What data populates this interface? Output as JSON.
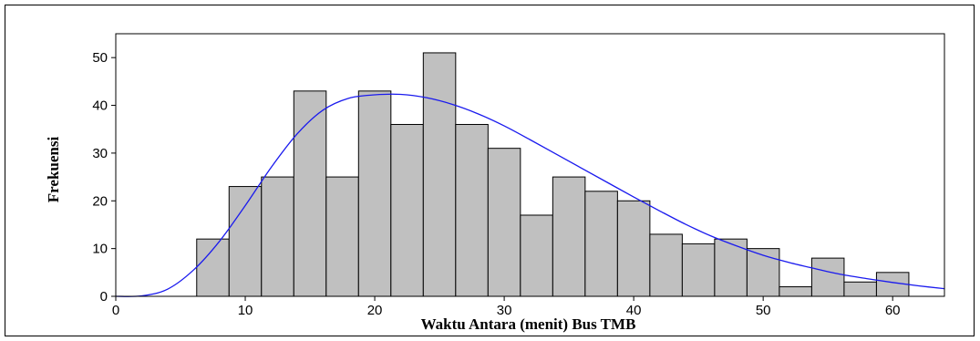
{
  "chart_data": {
    "type": "bar",
    "title": "",
    "xlabel": "Waktu Antara (menit) Bus TMB",
    "ylabel": "Frekuensi",
    "xlim": [
      0,
      64
    ],
    "ylim": [
      0,
      55
    ],
    "x_ticks": [
      0,
      10,
      20,
      30,
      40,
      50,
      60
    ],
    "y_ticks": [
      0,
      10,
      20,
      30,
      40,
      50
    ],
    "bin_width": 2.5,
    "bins": [
      {
        "x0": 6.25,
        "x1": 8.75,
        "count": 12
      },
      {
        "x0": 8.75,
        "x1": 11.25,
        "count": 23
      },
      {
        "x0": 11.25,
        "x1": 13.75,
        "count": 25
      },
      {
        "x0": 13.75,
        "x1": 16.25,
        "count": 43
      },
      {
        "x0": 16.25,
        "x1": 18.75,
        "count": 25
      },
      {
        "x0": 18.75,
        "x1": 21.25,
        "count": 43
      },
      {
        "x0": 21.25,
        "x1": 23.75,
        "count": 36
      },
      {
        "x0": 23.75,
        "x1": 26.25,
        "count": 51
      },
      {
        "x0": 26.25,
        "x1": 28.75,
        "count": 36
      },
      {
        "x0": 28.75,
        "x1": 31.25,
        "count": 31
      },
      {
        "x0": 31.25,
        "x1": 33.75,
        "count": 17
      },
      {
        "x0": 33.75,
        "x1": 36.25,
        "count": 25
      },
      {
        "x0": 36.25,
        "x1": 38.75,
        "count": 22
      },
      {
        "x0": 38.75,
        "x1": 41.25,
        "count": 20
      },
      {
        "x0": 41.25,
        "x1": 43.75,
        "count": 13
      },
      {
        "x0": 43.75,
        "x1": 46.25,
        "count": 11
      },
      {
        "x0": 46.25,
        "x1": 48.75,
        "count": 12
      },
      {
        "x0": 48.75,
        "x1": 51.25,
        "count": 10
      },
      {
        "x0": 51.25,
        "x1": 53.75,
        "count": 2
      },
      {
        "x0": 53.75,
        "x1": 56.25,
        "count": 8
      },
      {
        "x0": 56.25,
        "x1": 58.75,
        "count": 3
      },
      {
        "x0": 58.75,
        "x1": 61.25,
        "count": 5
      }
    ],
    "fit_curve": {
      "x": [
        0,
        2,
        4,
        6,
        8,
        10,
        12,
        14,
        16,
        18,
        20,
        22,
        24,
        26,
        28,
        30,
        32,
        34,
        36,
        38,
        40,
        42,
        44,
        46,
        48,
        50,
        52,
        54,
        56,
        58,
        60,
        62,
        64
      ],
      "y": [
        0,
        0.1,
        1.5,
        5.5,
        11.5,
        19,
        27,
        34,
        39,
        41.5,
        42.2,
        42.3,
        41.6,
        40.2,
        38.2,
        35.7,
        32.8,
        29.8,
        26.8,
        23.8,
        20.8,
        17.9,
        15.1,
        12.6,
        10.5,
        8.6,
        7.1,
        5.8,
        4.6,
        3.7,
        2.9,
        2.2,
        1.6
      ]
    },
    "colors": {
      "bar_fill": "#c0c0c0",
      "bar_stroke": "#000000",
      "curve": "#1a1aee",
      "background": "#ffffff"
    },
    "grid": false,
    "legend": "none"
  }
}
